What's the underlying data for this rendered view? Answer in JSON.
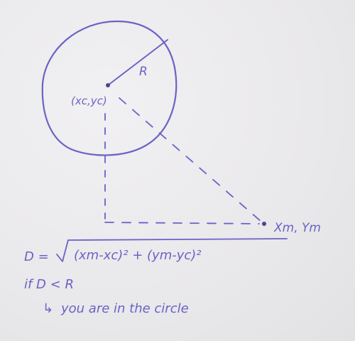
{
  "diagram": {
    "ink_color": "#6a63c6",
    "paper_color": "#ecebed",
    "labels": {
      "radius": "R",
      "center": "(xc,yc)",
      "mouse_point": "Xm, Ym"
    },
    "formula": {
      "lhs": "D =",
      "radicand": "(xm-xc)² + (ym-yc)²"
    },
    "condition": {
      "line1": "if D < R",
      "arrow": "↳",
      "line2": "you are in the circle"
    }
  }
}
